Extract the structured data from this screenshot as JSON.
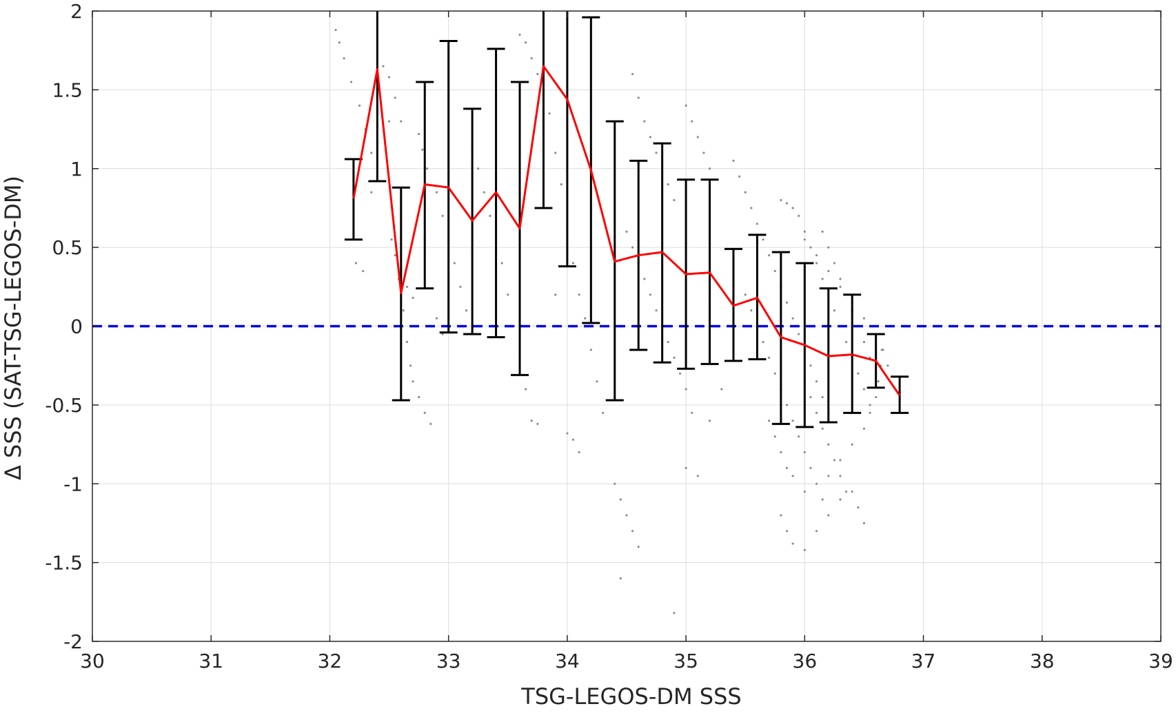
{
  "chart_data": {
    "type": "scatter",
    "title": "",
    "xlabel": "TSG-LEGOS-DM SSS",
    "ylabel": "Δ SSS (SAT-TSG-LEGOS-DM)",
    "xlim": [
      30,
      39
    ],
    "ylim": [
      -2,
      2
    ],
    "xticks": [
      30,
      31,
      32,
      33,
      34,
      35,
      36,
      37,
      38,
      39
    ],
    "yticks": [
      -2,
      -1.5,
      -1,
      -0.5,
      0,
      0.5,
      1,
      1.5,
      2
    ],
    "xtick_labels": [
      "30",
      "31",
      "32",
      "33",
      "34",
      "35",
      "36",
      "37",
      "38",
      "39"
    ],
    "ytick_labels": [
      "-2",
      "-1.5",
      "-1",
      "-0.5",
      "0",
      "0.5",
      "1",
      "1.5",
      "2"
    ],
    "grid": true,
    "reference_line": {
      "y": 0,
      "style": "dashed",
      "color": "#0000e6"
    },
    "mean_line_color": "#ff0000",
    "errorbar_color": "#000000",
    "scatter_color": "#8c8c8c",
    "binned_series": {
      "x": [
        32.2,
        32.4,
        32.6,
        32.8,
        33.0,
        33.2,
        33.4,
        33.6,
        33.8,
        34.0,
        34.2,
        34.4,
        34.6,
        34.8,
        35.0,
        35.2,
        35.4,
        35.6,
        35.8,
        36.0,
        36.2,
        36.4,
        36.6,
        36.8
      ],
      "mean": [
        0.81,
        1.63,
        0.21,
        0.9,
        0.88,
        0.67,
        0.85,
        0.62,
        1.65,
        1.44,
        0.99,
        0.41,
        0.45,
        0.47,
        0.33,
        0.34,
        0.13,
        0.18,
        -0.07,
        -0.12,
        -0.19,
        -0.18,
        -0.22,
        -0.44
      ],
      "lower": [
        0.55,
        0.92,
        -0.47,
        0.24,
        -0.04,
        -0.05,
        -0.07,
        -0.31,
        0.75,
        0.38,
        0.02,
        -0.47,
        -0.15,
        -0.23,
        -0.27,
        -0.24,
        -0.22,
        -0.21,
        -0.62,
        -0.64,
        -0.61,
        -0.55,
        -0.39,
        -0.55
      ],
      "upper": [
        1.06,
        2.0,
        0.88,
        1.55,
        1.81,
        1.38,
        1.76,
        1.55,
        2.0,
        2.0,
        1.96,
        1.3,
        1.05,
        1.16,
        0.93,
        0.93,
        0.49,
        0.58,
        0.47,
        0.4,
        0.24,
        0.2,
        -0.05,
        -0.32
      ]
    },
    "scatter_points": [
      [
        32.05,
        1.88
      ],
      [
        32.08,
        1.8
      ],
      [
        32.12,
        1.7
      ],
      [
        32.18,
        1.55
      ],
      [
        32.25,
        1.4
      ],
      [
        32.3,
        1.25
      ],
      [
        32.35,
        1.1
      ],
      [
        32.22,
        0.4
      ],
      [
        32.28,
        0.35
      ],
      [
        32.35,
        0.85
      ],
      [
        32.4,
        1.8
      ],
      [
        32.45,
        1.65
      ],
      [
        32.5,
        1.3
      ],
      [
        32.52,
        0.55
      ],
      [
        32.55,
        0.45
      ],
      [
        32.58,
        0.3
      ],
      [
        32.6,
        0.2
      ],
      [
        32.62,
        0.1
      ],
      [
        32.65,
        -0.1
      ],
      [
        32.68,
        -0.25
      ],
      [
        32.7,
        -0.35
      ],
      [
        32.75,
        -0.45
      ],
      [
        32.8,
        -0.55
      ],
      [
        32.85,
        -0.62
      ],
      [
        32.5,
        1.58
      ],
      [
        32.55,
        1.45
      ],
      [
        32.6,
        1.3
      ],
      [
        32.75,
        1.22
      ],
      [
        32.78,
        1.12
      ],
      [
        32.82,
        1.0
      ],
      [
        32.9,
        0.85
      ],
      [
        32.95,
        0.7
      ],
      [
        33.0,
        0.55
      ],
      [
        33.05,
        0.4
      ],
      [
        33.1,
        0.25
      ],
      [
        33.15,
        0.1
      ],
      [
        33.2,
        -0.02
      ],
      [
        32.6,
        0.35
      ],
      [
        32.65,
        0.25
      ],
      [
        32.7,
        0.18
      ],
      [
        32.9,
        0.05
      ],
      [
        32.95,
        -0.05
      ],
      [
        33.2,
        1.15
      ],
      [
        33.25,
        1.0
      ],
      [
        33.3,
        0.85
      ],
      [
        33.35,
        0.7
      ],
      [
        33.4,
        0.55
      ],
      [
        33.45,
        0.4
      ],
      [
        33.5,
        0.2
      ],
      [
        33.55,
        0.0
      ],
      [
        33.6,
        -0.2
      ],
      [
        33.65,
        -0.4
      ],
      [
        33.7,
        -0.6
      ],
      [
        33.75,
        -0.62
      ],
      [
        33.6,
        1.85
      ],
      [
        33.65,
        1.8
      ],
      [
        33.7,
        1.7
      ],
      [
        33.75,
        1.6
      ],
      [
        33.8,
        1.5
      ],
      [
        33.85,
        1.35
      ],
      [
        33.9,
        1.1
      ],
      [
        33.95,
        0.9
      ],
      [
        34.0,
        0.6
      ],
      [
        34.05,
        0.4
      ],
      [
        34.1,
        0.2
      ],
      [
        34.15,
        0.05
      ],
      [
        34.2,
        -0.15
      ],
      [
        34.25,
        -0.35
      ],
      [
        34.3,
        -0.55
      ],
      [
        34.0,
        -0.68
      ],
      [
        34.05,
        -0.72
      ],
      [
        34.1,
        -0.8
      ],
      [
        33.9,
        0.2
      ],
      [
        34.55,
        1.6
      ],
      [
        34.6,
        1.45
      ],
      [
        34.65,
        1.3
      ],
      [
        34.7,
        1.2
      ],
      [
        34.75,
        1.1
      ],
      [
        34.8,
        1.0
      ],
      [
        34.85,
        0.9
      ],
      [
        34.9,
        0.8
      ],
      [
        35.0,
        1.4
      ],
      [
        35.05,
        1.3
      ],
      [
        35.1,
        1.2
      ],
      [
        35.15,
        1.1
      ],
      [
        35.2,
        1.0
      ],
      [
        34.5,
        0.6
      ],
      [
        34.55,
        0.5
      ],
      [
        34.6,
        0.4
      ],
      [
        34.65,
        0.3
      ],
      [
        34.7,
        0.2
      ],
      [
        34.75,
        0.1
      ],
      [
        34.8,
        0.0
      ],
      [
        34.85,
        -0.1
      ],
      [
        34.9,
        -0.2
      ],
      [
        34.95,
        -0.3
      ],
      [
        35.0,
        -0.4
      ],
      [
        35.05,
        -0.55
      ],
      [
        34.4,
        -1.0
      ],
      [
        34.45,
        -1.1
      ],
      [
        34.5,
        -1.2
      ],
      [
        34.55,
        -1.3
      ],
      [
        34.6,
        -1.4
      ],
      [
        34.45,
        -1.6
      ],
      [
        34.9,
        -1.82
      ],
      [
        35.0,
        -0.9
      ],
      [
        35.1,
        -0.95
      ],
      [
        35.2,
        -0.6
      ],
      [
        35.3,
        -0.4
      ],
      [
        35.4,
        1.05
      ],
      [
        35.45,
        0.95
      ],
      [
        35.5,
        0.85
      ],
      [
        35.55,
        0.75
      ],
      [
        35.6,
        0.65
      ],
      [
        35.65,
        0.55
      ],
      [
        35.7,
        0.45
      ],
      [
        35.75,
        0.35
      ],
      [
        35.8,
        0.25
      ],
      [
        35.85,
        0.15
      ],
      [
        35.9,
        0.05
      ],
      [
        35.95,
        -0.05
      ],
      [
        36.0,
        -0.15
      ],
      [
        36.05,
        -0.25
      ],
      [
        36.1,
        -0.35
      ],
      [
        36.15,
        -0.45
      ],
      [
        36.2,
        -0.55
      ],
      [
        35.5,
        0.2
      ],
      [
        35.55,
        0.1
      ],
      [
        35.6,
        0.0
      ],
      [
        35.65,
        -0.1
      ],
      [
        35.7,
        -0.2
      ],
      [
        35.75,
        -0.3
      ],
      [
        35.8,
        -0.4
      ],
      [
        35.85,
        -0.5
      ],
      [
        35.9,
        -0.6
      ],
      [
        35.95,
        -0.7
      ],
      [
        36.0,
        -0.8
      ],
      [
        36.05,
        -0.9
      ],
      [
        36.1,
        -1.0
      ],
      [
        36.15,
        -1.1
      ],
      [
        35.8,
        0.8
      ],
      [
        35.85,
        0.78
      ],
      [
        35.9,
        0.75
      ],
      [
        35.95,
        0.7
      ],
      [
        36.0,
        0.6
      ],
      [
        36.05,
        0.5
      ],
      [
        36.1,
        0.4
      ],
      [
        36.15,
        0.3
      ],
      [
        36.2,
        0.2
      ],
      [
        36.25,
        0.1
      ],
      [
        36.3,
        0.0
      ],
      [
        36.35,
        -0.1
      ],
      [
        36.4,
        -0.2
      ],
      [
        36.45,
        -0.3
      ],
      [
        36.5,
        -0.4
      ],
      [
        36.55,
        -0.5
      ],
      [
        36.0,
        0.55
      ],
      [
        36.1,
        0.45
      ],
      [
        36.2,
        0.35
      ],
      [
        36.3,
        0.25
      ],
      [
        36.4,
        0.15
      ],
      [
        36.5,
        0.05
      ],
      [
        36.6,
        -0.05
      ],
      [
        36.65,
        -0.15
      ],
      [
        36.7,
        -0.25
      ],
      [
        35.8,
        -1.2
      ],
      [
        35.85,
        -1.3
      ],
      [
        35.9,
        -1.38
      ],
      [
        36.0,
        -1.42
      ],
      [
        36.1,
        -1.3
      ],
      [
        36.2,
        -1.2
      ],
      [
        36.3,
        -1.1
      ],
      [
        36.4,
        -1.05
      ],
      [
        36.45,
        -1.15
      ],
      [
        36.5,
        -1.25
      ],
      [
        35.9,
        -0.95
      ],
      [
        36.0,
        -1.05
      ],
      [
        36.2,
        -0.95
      ],
      [
        36.3,
        -0.85
      ],
      [
        36.4,
        -0.75
      ],
      [
        36.5,
        -0.65
      ],
      [
        36.55,
        -0.55
      ],
      [
        36.6,
        -0.45
      ],
      [
        36.62,
        -0.35
      ],
      [
        36.64,
        -0.25
      ],
      [
        36.66,
        -0.15
      ],
      [
        36.6,
        -0.3
      ],
      [
        36.55,
        -0.2
      ],
      [
        36.5,
        -0.1
      ],
      [
        36.45,
        0.0
      ],
      [
        36.4,
        0.1
      ],
      [
        36.35,
        0.2
      ],
      [
        36.3,
        0.3
      ],
      [
        36.25,
        0.4
      ],
      [
        36.2,
        0.5
      ],
      [
        36.15,
        0.6
      ],
      [
        35.7,
        -0.6
      ],
      [
        35.75,
        -0.7
      ],
      [
        35.8,
        -0.8
      ],
      [
        35.85,
        -0.9
      ],
      [
        36.0,
        -0.35
      ],
      [
        36.05,
        -0.45
      ],
      [
        36.1,
        -0.55
      ],
      [
        36.15,
        -0.65
      ],
      [
        36.2,
        -0.75
      ],
      [
        36.25,
        -0.85
      ],
      [
        36.3,
        -0.95
      ],
      [
        36.35,
        -1.05
      ]
    ]
  }
}
